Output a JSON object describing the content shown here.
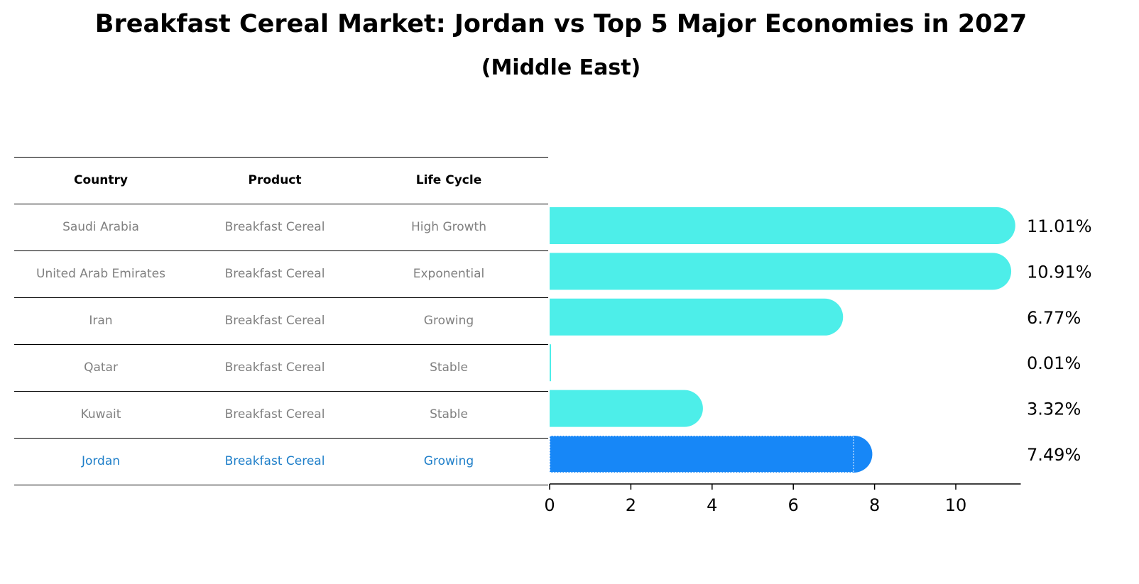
{
  "title": "Breakfast Cereal Market: Jordan vs Top 5 Major Economies in 2027",
  "subtitle": "(Middle East)",
  "table": {
    "headers": [
      "Country",
      "Product",
      "Life Cycle"
    ],
    "rows": [
      {
        "country": "Saudi Arabia",
        "product": "Breakfast Cereal",
        "life_cycle": "High Growth",
        "highlight": false
      },
      {
        "country": "United Arab Emirates",
        "product": "Breakfast Cereal",
        "life_cycle": "Exponential",
        "highlight": false
      },
      {
        "country": "Iran",
        "product": "Breakfast Cereal",
        "life_cycle": "Growing",
        "highlight": false
      },
      {
        "country": "Qatar",
        "product": "Breakfast Cereal",
        "life_cycle": "Stable",
        "highlight": false
      },
      {
        "country": "Kuwait",
        "product": "Breakfast Cereal",
        "life_cycle": "Stable",
        "highlight": false
      },
      {
        "country": "Jordan",
        "product": "Breakfast Cereal",
        "life_cycle": "Growing",
        "highlight": true
      }
    ]
  },
  "chart_data": {
    "type": "bar",
    "orientation": "horizontal",
    "categories": [
      "Saudi Arabia",
      "United Arab Emirates",
      "Iran",
      "Qatar",
      "Kuwait",
      "Jordan"
    ],
    "values": [
      11.01,
      10.91,
      6.77,
      0.01,
      3.32,
      7.49
    ],
    "value_labels": [
      "11.01%",
      "10.91%",
      "6.77%",
      "0.01%",
      "3.32%",
      "7.49%"
    ],
    "xticks": [
      0,
      2,
      4,
      6,
      8,
      10
    ],
    "xlim": [
      0,
      11.6
    ],
    "highlight_index": 5,
    "colors": {
      "default": "#4deee9",
      "highlight": "#1787f7"
    },
    "grid": false
  }
}
